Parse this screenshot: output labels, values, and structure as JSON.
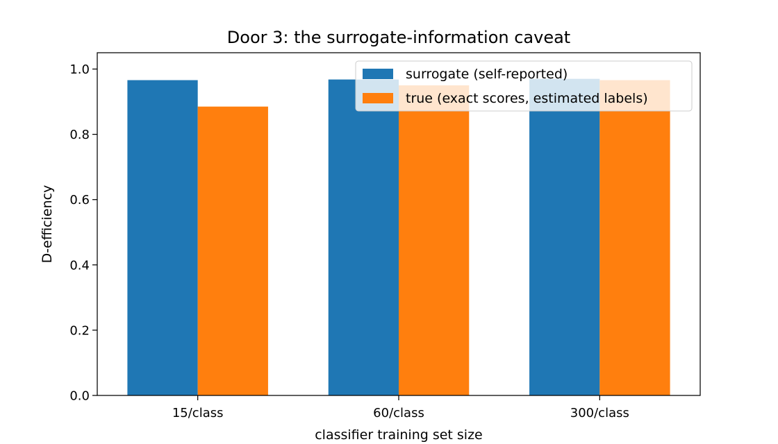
{
  "chart_data": {
    "type": "bar",
    "title": "Door 3: the surrogate-information caveat",
    "xlabel": "classifier training set size",
    "ylabel": "D-efficiency",
    "categories": [
      "15/class",
      "60/class",
      "300/class"
    ],
    "series": [
      {
        "name": "surrogate (self-reported)",
        "values": [
          0.966,
          0.968,
          0.97
        ],
        "color": "#1f77b4"
      },
      {
        "name": "true (exact scores, estimated labels)",
        "values": [
          0.885,
          0.95,
          0.966
        ],
        "color": "#ff7f0e"
      }
    ],
    "ylim": [
      0,
      1.05
    ],
    "yticks": [
      "0.0",
      "0.2",
      "0.4",
      "0.6",
      "0.8",
      "1.0"
    ],
    "grid": false,
    "legend_position": "top-right"
  }
}
